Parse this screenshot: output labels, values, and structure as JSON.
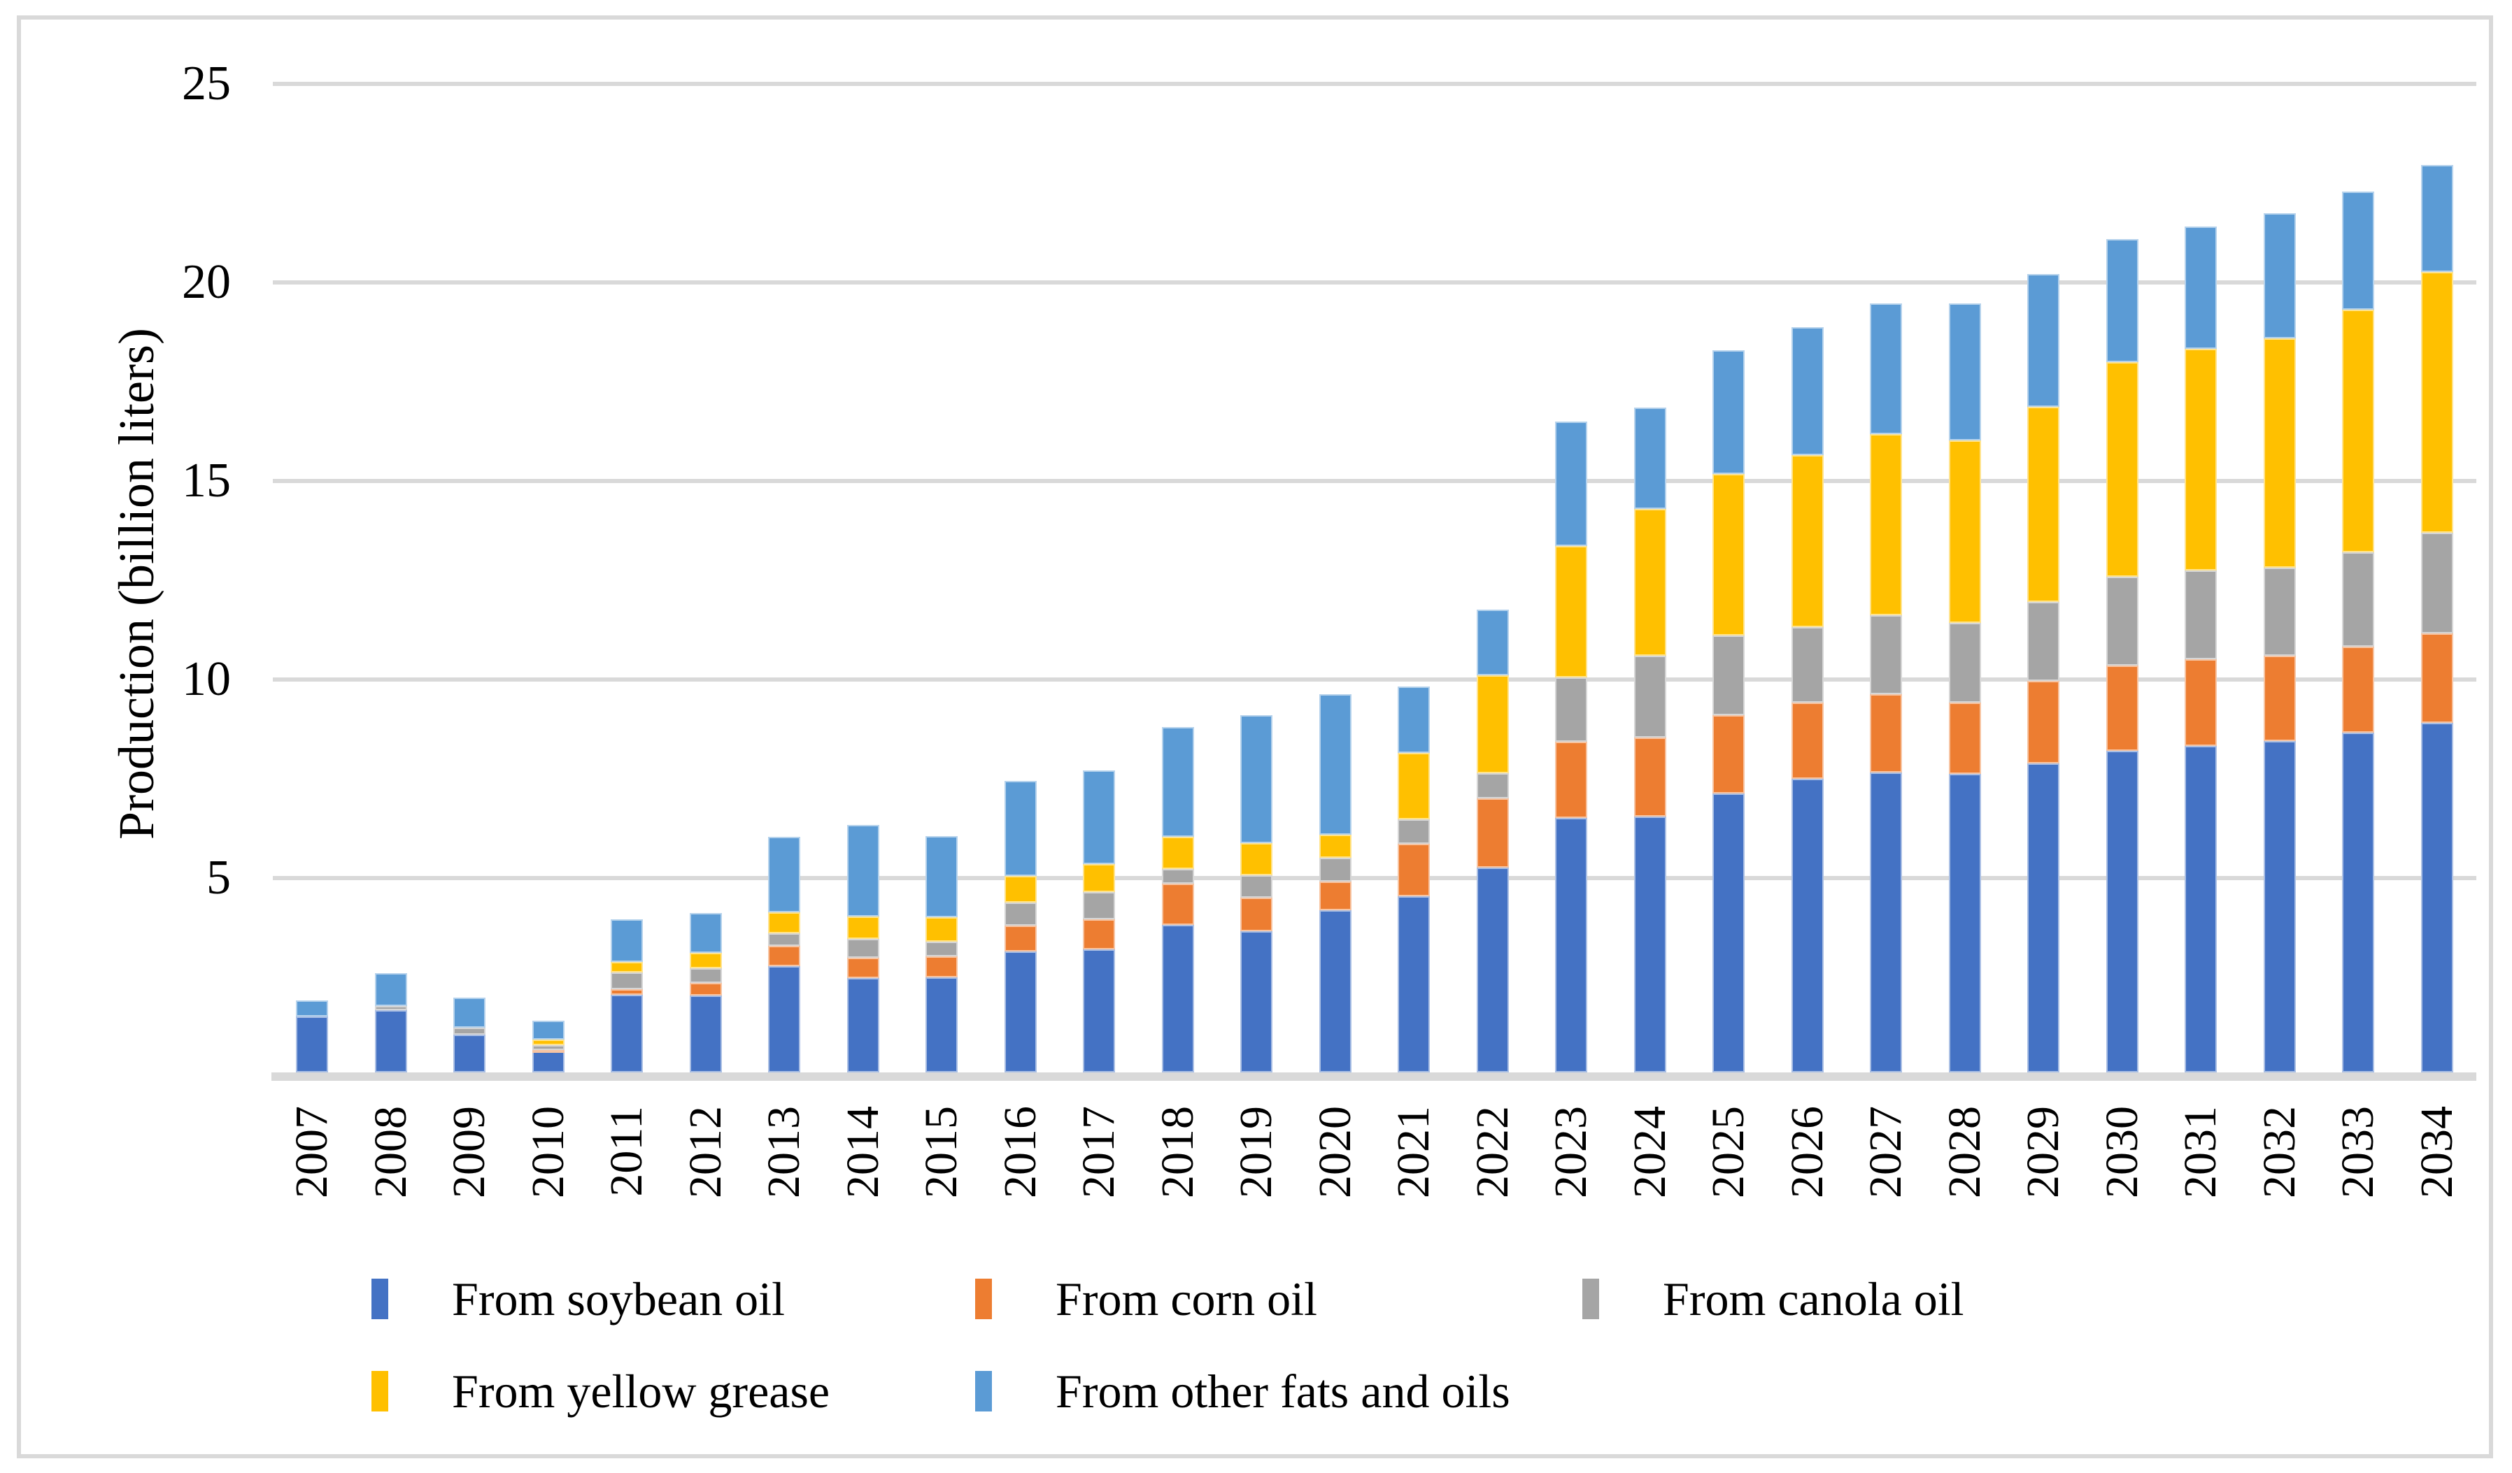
{
  "figure": {
    "background_color": "#ffffff",
    "border_color": "#d9d9d9"
  },
  "chart_data": {
    "type": "bar",
    "stacked": true,
    "title": "",
    "xlabel": "",
    "ylabel": "Production (billion liters)",
    "ylim": [
      0,
      25
    ],
    "yticks": [
      5,
      10,
      15,
      20,
      25
    ],
    "grid": true,
    "legend_position": "bottom",
    "categories": [
      "2007",
      "2008",
      "2009",
      "2010",
      "2011",
      "2012",
      "2013",
      "2014",
      "2015",
      "2016",
      "2017",
      "2018",
      "2019",
      "2020",
      "2021",
      "2022",
      "2023",
      "2024",
      "2025",
      "2026",
      "2027",
      "2028",
      "2029",
      "2030",
      "2031",
      "2032",
      "2033",
      "2034"
    ],
    "series": [
      {
        "name": "From soybean oil",
        "color": "#4472C4",
        "values": [
          1.4,
          1.57,
          0.95,
          0.52,
          1.96,
          1.93,
          2.68,
          2.38,
          2.4,
          3.05,
          3.1,
          3.72,
          3.56,
          4.09,
          4.44,
          5.15,
          6.41,
          6.45,
          7.03,
          7.4,
          7.55,
          7.52,
          7.78,
          8.1,
          8.23,
          8.35,
          8.55,
          8.8
        ]
      },
      {
        "name": "From corn oil",
        "color": "#ED7D31",
        "values": [
          0.0,
          0.0,
          0.0,
          0.04,
          0.14,
          0.32,
          0.5,
          0.5,
          0.53,
          0.65,
          0.75,
          1.04,
          0.85,
          0.72,
          1.31,
          1.75,
          1.91,
          1.99,
          1.97,
          1.91,
          1.97,
          1.8,
          2.08,
          2.14,
          2.17,
          2.14,
          2.17,
          2.26
        ]
      },
      {
        "name": "From canola oil",
        "color": "#A5A5A5",
        "values": [
          0.0,
          0.1,
          0.17,
          0.13,
          0.42,
          0.38,
          0.33,
          0.49,
          0.36,
          0.57,
          0.7,
          0.36,
          0.55,
          0.59,
          0.63,
          0.64,
          1.62,
          2.06,
          2.0,
          1.91,
          2.0,
          2.0,
          1.98,
          2.24,
          2.24,
          2.22,
          2.37,
          2.53
        ]
      },
      {
        "name": "From yellow grease",
        "color": "#FFC000",
        "values": [
          0.0,
          0.0,
          0.0,
          0.13,
          0.26,
          0.38,
          0.53,
          0.56,
          0.62,
          0.68,
          0.7,
          0.81,
          0.82,
          0.59,
          1.67,
          2.46,
          3.32,
          3.69,
          4.07,
          4.32,
          4.55,
          4.6,
          4.92,
          5.41,
          5.59,
          5.78,
          6.11,
          6.57
        ]
      },
      {
        "name": "From other fats and oils",
        "color": "#5B9BD5",
        "values": [
          0.42,
          0.83,
          0.77,
          0.48,
          1.08,
          1.0,
          1.89,
          2.3,
          2.04,
          2.4,
          2.35,
          2.77,
          3.22,
          3.54,
          1.66,
          1.65,
          3.13,
          2.55,
          3.12,
          3.22,
          3.29,
          3.45,
          3.34,
          3.09,
          3.07,
          3.14,
          2.98,
          2.69
        ]
      }
    ]
  },
  "legend": [
    {
      "label": "From soybean oil",
      "color": "#4472C4"
    },
    {
      "label": "From corn oil",
      "color": "#ED7D31"
    },
    {
      "label": "From canola oil",
      "color": "#A5A5A5"
    },
    {
      "label": "From yellow grease",
      "color": "#FFC000"
    },
    {
      "label": "From other fats and oils",
      "color": "#5B9BD5"
    }
  ],
  "grid_color": "#d9d9d9"
}
